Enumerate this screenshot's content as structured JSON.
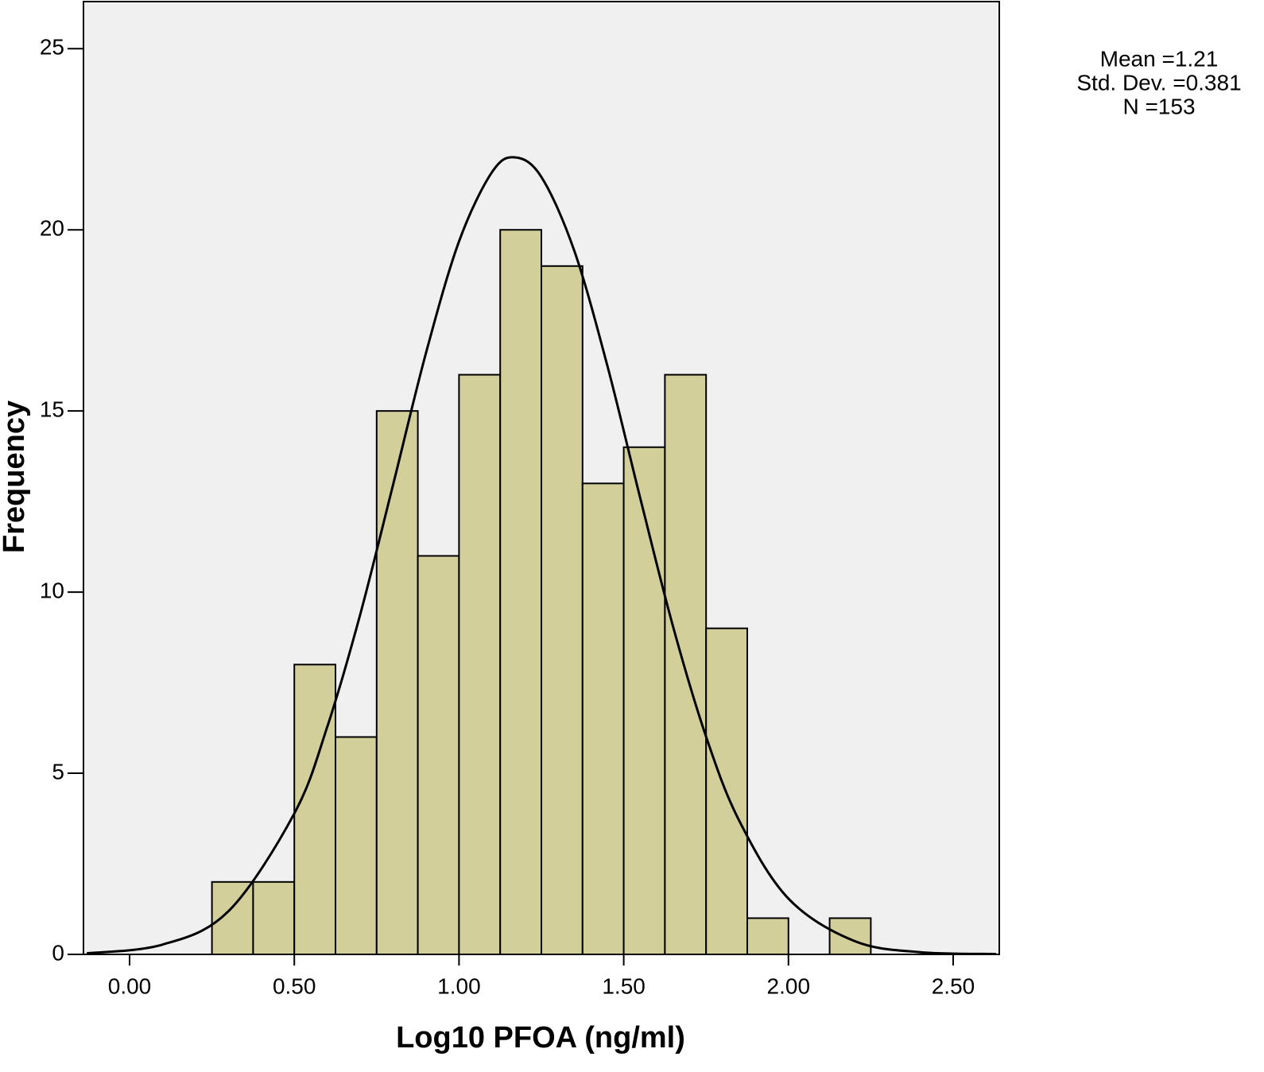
{
  "chart_data": {
    "type": "histogram",
    "x_label": "Log10 PFOA (ng/ml)",
    "y_label": "Frequency",
    "annotations": [
      "Mean =1.21",
      "Std. Dev. =0.381",
      "N =153"
    ],
    "bins": [
      0.25,
      0.375,
      0.5,
      0.625,
      0.75,
      0.875,
      1.0,
      1.125,
      1.25,
      1.375,
      1.5,
      1.625,
      1.75,
      1.875,
      2.0,
      2.125,
      2.25
    ],
    "values": [
      2,
      2,
      8,
      6,
      15,
      11,
      16,
      20,
      19,
      13,
      14,
      16,
      9,
      1,
      0,
      1
    ],
    "color": "#d3cf9b",
    "curve": {
      "x": [
        -0.13,
        0.1,
        0.3,
        0.5,
        0.6,
        0.7,
        0.8,
        0.9,
        1.0,
        1.1,
        1.17,
        1.25,
        1.35,
        1.45,
        1.55,
        1.65,
        1.75,
        1.85,
        2.0,
        2.2,
        2.4,
        2.63
      ],
      "y": [
        0.03,
        0.27,
        1.19,
        3.89,
        6.28,
        9.38,
        12.97,
        16.61,
        19.68,
        21.59,
        22,
        21.46,
        19.42,
        16.26,
        12.6,
        9.04,
        6.01,
        3.7,
        1.54,
        0.37,
        0.06,
        0.01
      ]
    },
    "xlim": [
      -0.14,
      2.64
    ],
    "ylim": [
      0,
      26.3
    ],
    "xticks": [
      {
        "value": 0,
        "label": "0.00"
      },
      {
        "value": 0.5,
        "label": "0.50"
      },
      {
        "value": 1,
        "label": "1.00"
      },
      {
        "value": 1.5,
        "label": "1.50"
      },
      {
        "value": 2,
        "label": "2.00"
      },
      {
        "value": 2.5,
        "label": "2.50"
      }
    ],
    "yticks": [
      0,
      5,
      10,
      15,
      20,
      25
    ]
  }
}
